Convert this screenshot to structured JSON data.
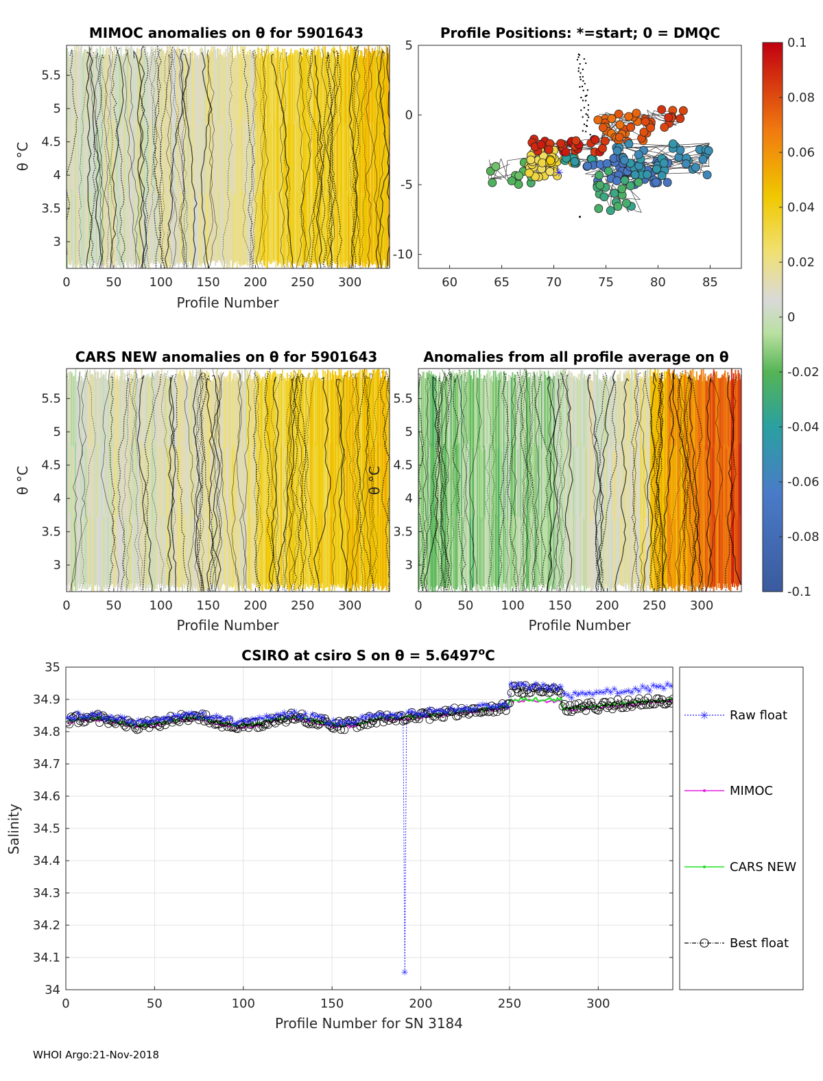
{
  "footer": "WHOI Argo:21-Nov-2018",
  "chart_data": [
    {
      "id": "mimoc",
      "type": "heatmap",
      "title": "MIMOC anomalies on θ  for 5901643",
      "xlabel": "Profile Number",
      "ylabel": "θ °C",
      "xlim": [
        0,
        342
      ],
      "ylim": [
        2.6,
        5.95
      ],
      "xticks": [
        "0",
        "50",
        "100",
        "150",
        "200",
        "250",
        "300"
      ],
      "yticks": [
        "3",
        "3.5",
        "4",
        "4.5",
        "5",
        "5.5"
      ],
      "xtick_values": [
        0,
        50,
        100,
        150,
        200,
        250,
        300
      ],
      "ytick_values": [
        3,
        3.5,
        4,
        4.5,
        5,
        5.5
      ]
    },
    {
      "id": "positions",
      "type": "scatter",
      "title": "Profile Positions: *=start; 0 = DMQC",
      "xlim": [
        57,
        88
      ],
      "ylim": [
        -11,
        5
      ],
      "xticks": [
        "60",
        "65",
        "70",
        "75",
        "80",
        "85"
      ],
      "yticks": [
        "5",
        "0",
        "-5",
        "-10"
      ],
      "xtick_values": [
        60,
        65,
        70,
        75,
        80,
        85
      ],
      "ytick_values": [
        5,
        0,
        -5,
        -10
      ],
      "start_marker": [
        70.5,
        -4.1
      ]
    },
    {
      "id": "colorbar",
      "type": "colorbar",
      "range": [
        -0.1,
        0.1
      ],
      "ticks": [
        "0.1",
        "0.08",
        "0.06",
        "0.04",
        "0.02",
        "0",
        "-0.02",
        "-0.04",
        "-0.06",
        "-0.08",
        "-0.1"
      ],
      "tick_values": [
        0.1,
        0.08,
        0.06,
        0.04,
        0.02,
        0,
        -0.02,
        -0.04,
        -0.06,
        -0.08,
        -0.1
      ]
    },
    {
      "id": "cars",
      "type": "heatmap",
      "title": "CARS NEW anomalies on θ for 5901643",
      "xlabel": "Profile Number",
      "ylabel": "θ °C",
      "xlim": [
        0,
        342
      ],
      "ylim": [
        2.6,
        5.95
      ],
      "xticks": [
        "0",
        "50",
        "100",
        "150",
        "200",
        "250",
        "300"
      ],
      "yticks": [
        "3",
        "3.5",
        "4",
        "4.5",
        "5",
        "5.5"
      ],
      "xtick_values": [
        0,
        50,
        100,
        150,
        200,
        250,
        300
      ],
      "ytick_values": [
        3,
        3.5,
        4,
        4.5,
        5,
        5.5
      ]
    },
    {
      "id": "allavg",
      "type": "heatmap",
      "title": "Anomalies from all profile average on θ",
      "xlabel": "Profile Number",
      "ylabel": "θ °C",
      "xlim": [
        0,
        342
      ],
      "ylim": [
        2.6,
        5.95
      ],
      "xticks": [
        "0",
        "50",
        "100",
        "150",
        "200",
        "250",
        "300"
      ],
      "yticks": [
        "3",
        "3.5",
        "4",
        "4.5",
        "5",
        "5.5"
      ],
      "xtick_values": [
        0,
        50,
        100,
        150,
        200,
        250,
        300
      ],
      "ytick_values": [
        3,
        3.5,
        4,
        4.5,
        5,
        5.5
      ]
    },
    {
      "id": "salinity",
      "type": "line",
      "title_prefix": "CSIRO at csiro S on θ = 5.6497",
      "title_sup": "o",
      "title_suffix": "C",
      "xlabel": "Profile Number for SN 3184",
      "ylabel": "Salinity",
      "xlim": [
        0,
        342
      ],
      "ylim": [
        34,
        35
      ],
      "xticks": [
        "0",
        "50",
        "100",
        "150",
        "200",
        "250",
        "300"
      ],
      "yticks": [
        "34",
        "34.1",
        "34.2",
        "34.3",
        "34.4",
        "34.5",
        "34.6",
        "34.7",
        "34.8",
        "34.9",
        "35"
      ],
      "xtick_values": [
        0,
        50,
        100,
        150,
        200,
        250,
        300
      ],
      "ytick_values": [
        34,
        34.1,
        34.2,
        34.3,
        34.4,
        34.5,
        34.6,
        34.7,
        34.8,
        34.9,
        35
      ],
      "legend": [
        "Raw float",
        "MIMOC",
        "CARS NEW",
        "Best float"
      ],
      "spike": {
        "x": 191,
        "y": 34.055
      },
      "series_colors": {
        "raw": "#1f1fff",
        "mimoc": "#e01ee0",
        "cars": "#1ee01e",
        "best": "#000000"
      }
    }
  ]
}
